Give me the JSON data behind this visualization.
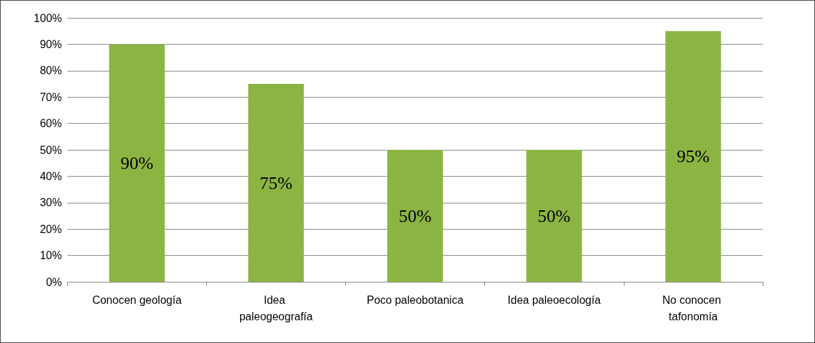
{
  "chart_data": {
    "type": "bar",
    "categories": [
      "Conocen geología",
      "Idea paleogeografía",
      "Poco paleobotanica",
      "Idea paleoecología",
      "No conocen tafonomía"
    ],
    "values": [
      90,
      75,
      50,
      50,
      95
    ],
    "value_labels": [
      "90%",
      "75%",
      "50%",
      "50%",
      "95%"
    ],
    "color": "#8cb443",
    "ylim": [
      0,
      100
    ],
    "yticks": [
      {
        "value": 0,
        "label": "0%"
      },
      {
        "value": 10,
        "label": "10%"
      },
      {
        "value": 20,
        "label": "20%"
      },
      {
        "value": 30,
        "label": "30%"
      },
      {
        "value": 40,
        "label": "40%"
      },
      {
        "value": 50,
        "label": "50%"
      },
      {
        "value": 60,
        "label": "60%"
      },
      {
        "value": 70,
        "label": "70%"
      },
      {
        "value": 80,
        "label": "80%"
      },
      {
        "value": 90,
        "label": "90%"
      },
      {
        "value": 100,
        "label": "100%"
      }
    ],
    "grid": "y"
  }
}
